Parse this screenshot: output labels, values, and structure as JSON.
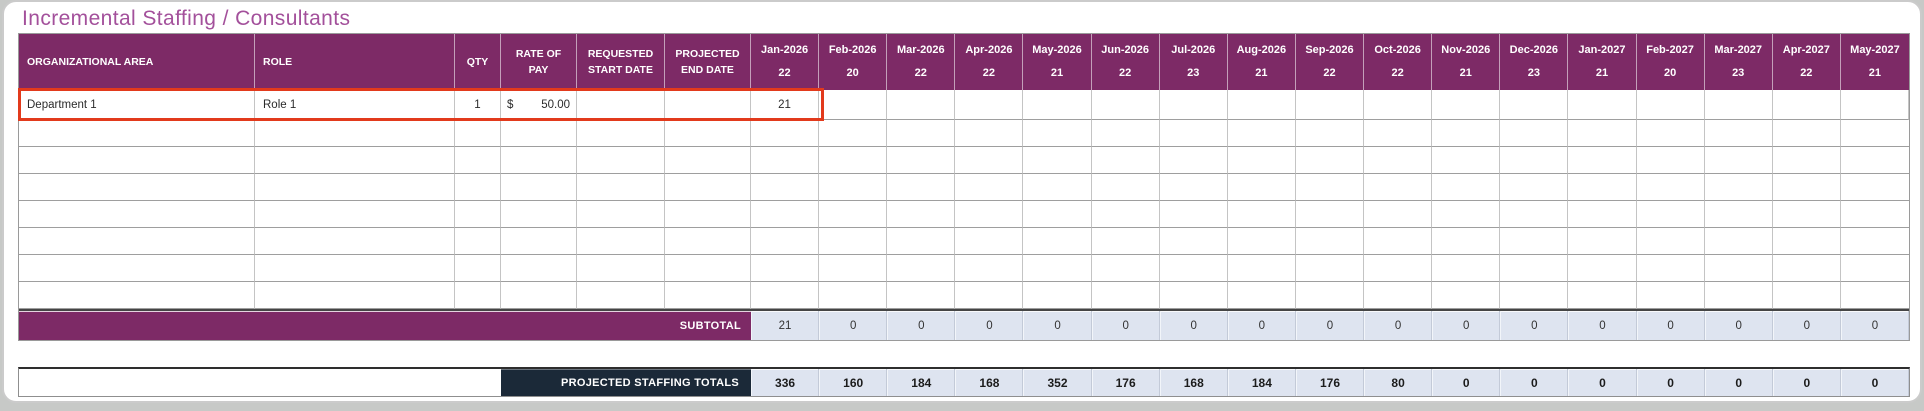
{
  "page": {
    "title": "Incremental Staffing / Consultants"
  },
  "colors": {
    "title_text": "#a3509b",
    "header_bg": "#7d2a66",
    "totals_bar_bg": "#1b2938",
    "summary_cell_fill": "#dee4f0",
    "selection_highlight": "#e23a1c"
  },
  "table": {
    "columns": [
      "ORGANIZATIONAL AREA",
      "ROLE",
      "QTY",
      "RATE OF PAY",
      "REQUESTED START DATE",
      "PROJECTED END DATE"
    ],
    "months": [
      {
        "label": "Jan-2026",
        "days": "22"
      },
      {
        "label": "Feb-2026",
        "days": "20"
      },
      {
        "label": "Mar-2026",
        "days": "22"
      },
      {
        "label": "Apr-2026",
        "days": "22"
      },
      {
        "label": "May-2026",
        "days": "21"
      },
      {
        "label": "Jun-2026",
        "days": "22"
      },
      {
        "label": "Jul-2026",
        "days": "23"
      },
      {
        "label": "Aug-2026",
        "days": "21"
      },
      {
        "label": "Sep-2026",
        "days": "22"
      },
      {
        "label": "Oct-2026",
        "days": "22"
      },
      {
        "label": "Nov-2026",
        "days": "21"
      },
      {
        "label": "Dec-2026",
        "days": "23"
      },
      {
        "label": "Jan-2027",
        "days": "21"
      },
      {
        "label": "Feb-2027",
        "days": "20"
      },
      {
        "label": "Mar-2027",
        "days": "23"
      },
      {
        "label": "Apr-2027",
        "days": "22"
      },
      {
        "label": "May-2027",
        "days": "21"
      }
    ],
    "rows": [
      {
        "area": "Department 1",
        "role": "Role 1",
        "qty": "1",
        "rate_symbol": "$",
        "rate": "50.00",
        "start_date": "",
        "end_date": "",
        "months": [
          "21",
          "",
          "",
          "",
          "",
          "",
          "",
          "",
          "",
          "",
          "",
          "",
          "",
          "",
          "",
          "",
          ""
        ],
        "highlighted": true
      }
    ],
    "empty_row_count": 7,
    "subtotal": {
      "label": "SUBTOTAL",
      "values": [
        "21",
        "0",
        "0",
        "0",
        "0",
        "0",
        "0",
        "0",
        "0",
        "0",
        "0",
        "0",
        "0",
        "0",
        "0",
        "0",
        "0"
      ]
    },
    "totals": {
      "label": "PROJECTED STAFFING TOTALS",
      "values": [
        "336",
        "160",
        "184",
        "168",
        "352",
        "176",
        "168",
        "184",
        "176",
        "80",
        "0",
        "0",
        "0",
        "0",
        "0",
        "0",
        "0"
      ]
    }
  }
}
